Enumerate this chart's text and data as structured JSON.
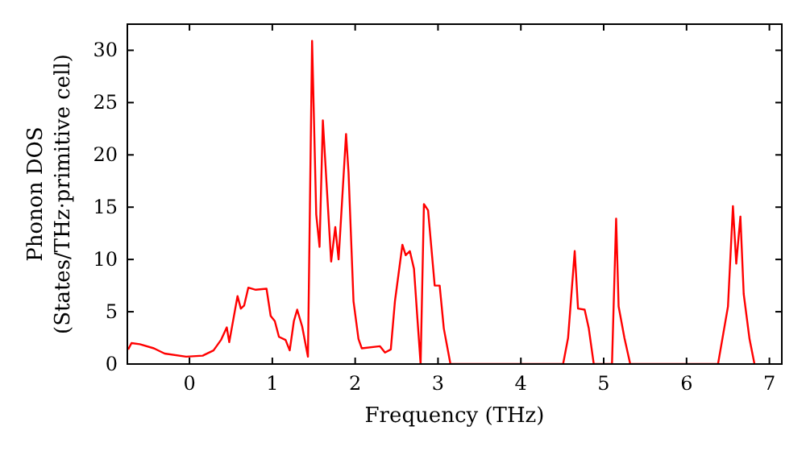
{
  "chart_data": {
    "type": "line",
    "xlabel": "Frequency (THz)",
    "ylabel": "Phonon DOS\n(States/THz·primitive cell)",
    "xlim": [
      -0.75,
      7.15
    ],
    "ylim": [
      0,
      32.5
    ],
    "xticks": [
      0,
      1,
      2,
      3,
      4,
      5,
      6,
      7
    ],
    "yticks": [
      0,
      5,
      10,
      15,
      20,
      25,
      30
    ],
    "grid": false,
    "series": [
      {
        "color": "#ff0000",
        "x": [
          -0.74,
          -0.7,
          -0.6,
          -0.43,
          -0.3,
          -0.04,
          0.16,
          0.29,
          0.38,
          0.45,
          0.48,
          0.58,
          0.62,
          0.66,
          0.71,
          0.8,
          0.93,
          0.98,
          1.03,
          1.08,
          1.16,
          1.21,
          1.26,
          1.3,
          1.36,
          1.43,
          1.48,
          1.53,
          1.57,
          1.61,
          1.71,
          1.76,
          1.8,
          1.89,
          1.92,
          1.98,
          2.04,
          2.08,
          2.3,
          2.36,
          2.43,
          2.48,
          2.57,
          2.61,
          2.66,
          2.71,
          2.75,
          2.79,
          2.83,
          2.88,
          2.96,
          3.02,
          3.07,
          3.15,
          4.51,
          4.57,
          4.65,
          4.69,
          4.77,
          4.82,
          4.88,
          5.1,
          5.15,
          5.18,
          5.25,
          5.32,
          6.38,
          6.5,
          6.56,
          6.6,
          6.65,
          6.69,
          6.76,
          6.82
        ],
        "values": [
          1.4,
          2.0,
          1.9,
          1.5,
          1.0,
          0.7,
          0.8,
          1.3,
          2.3,
          3.5,
          2.1,
          6.5,
          5.3,
          5.6,
          7.3,
          7.1,
          7.2,
          4.6,
          4.1,
          2.6,
          2.3,
          1.3,
          4.1,
          5.2,
          3.6,
          0.7,
          30.9,
          14.3,
          11.2,
          23.3,
          9.8,
          13.1,
          10.0,
          22.0,
          18.3,
          6.0,
          2.4,
          1.5,
          1.7,
          1.1,
          1.4,
          6.0,
          11.4,
          10.4,
          10.8,
          9.1,
          4.5,
          0,
          15.3,
          14.7,
          7.5,
          7.5,
          3.4,
          0,
          0,
          2.5,
          10.8,
          5.3,
          5.2,
          3.4,
          0,
          0,
          13.9,
          5.5,
          2.5,
          0,
          0,
          5.5,
          15.1,
          9.6,
          14.1,
          6.7,
          2.4,
          0
        ]
      }
    ]
  }
}
